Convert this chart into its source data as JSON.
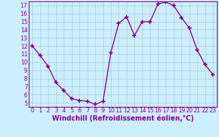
{
  "x": [
    0,
    1,
    2,
    3,
    4,
    5,
    6,
    7,
    8,
    9,
    10,
    11,
    12,
    13,
    14,
    15,
    16,
    17,
    18,
    19,
    20,
    21,
    22,
    23
  ],
  "y": [
    12,
    10.8,
    9.5,
    7.5,
    6.5,
    5.5,
    5.3,
    5.2,
    4.8,
    5.2,
    11.2,
    14.8,
    15.6,
    13.3,
    15.0,
    15.0,
    17.2,
    17.4,
    17.0,
    15.5,
    14.2,
    11.5,
    9.7,
    8.5
  ],
  "line_color": "#880088",
  "marker": "+",
  "marker_size": 4,
  "bg_color": "#cceeff",
  "grid_color": "#aacccc",
  "xlabel": "Windchill (Refroidissement éolien,°C)",
  "xlim": [
    -0.5,
    23.5
  ],
  "ylim": [
    4.5,
    17.5
  ],
  "yticks": [
    5,
    6,
    7,
    8,
    9,
    10,
    11,
    12,
    13,
    14,
    15,
    16,
    17
  ],
  "xticks": [
    0,
    1,
    2,
    3,
    4,
    5,
    6,
    7,
    8,
    9,
    10,
    11,
    12,
    13,
    14,
    15,
    16,
    17,
    18,
    19,
    20,
    21,
    22,
    23
  ],
  "xlabel_fontsize": 7,
  "tick_fontsize": 6,
  "line_width": 1.0,
  "marker_color": "#880088"
}
